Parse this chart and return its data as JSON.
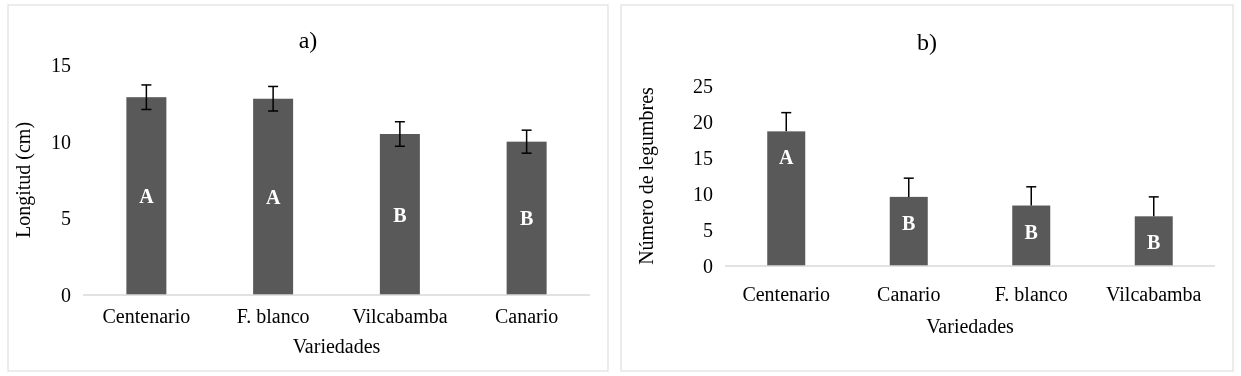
{
  "chart_data": [
    {
      "type": "bar",
      "title": "a)",
      "xlabel": "Variedades",
      "ylabel": "Longitud (cm)",
      "categories": [
        "Centenario",
        "F. blanco",
        "Vilcabamba",
        "Canario"
      ],
      "values": [
        12.9,
        12.8,
        10.5,
        10
      ],
      "errors": [
        0.8,
        0.8,
        0.8,
        0.75
      ],
      "color": "#595959",
      "ylim": [
        0,
        15
      ],
      "yticks": [
        0,
        5,
        10,
        15
      ],
      "grid": false,
      "annotations": [
        "A",
        "A",
        "B",
        "B"
      ]
    },
    {
      "type": "bar",
      "title": "b)",
      "xlabel": "Variedades",
      "ylabel": "Número de legumbres",
      "categories": [
        "Centenario",
        "Canario",
        "F. blanco",
        "Vilcabamba"
      ],
      "values": [
        18.7,
        9.6,
        8.4,
        6.9
      ],
      "errors": [
        [
          18.7,
          21.3
        ],
        [
          9.6,
          12.2
        ],
        [
          8.4,
          11
        ],
        [
          6.9,
          9.6
        ]
      ],
      "color": "#595959",
      "ylim": [
        0,
        25
      ],
      "yticks": [
        0,
        5,
        10,
        15,
        20,
        25
      ],
      "grid": false,
      "annotations": [
        "A",
        "B",
        "B",
        "B"
      ]
    }
  ]
}
